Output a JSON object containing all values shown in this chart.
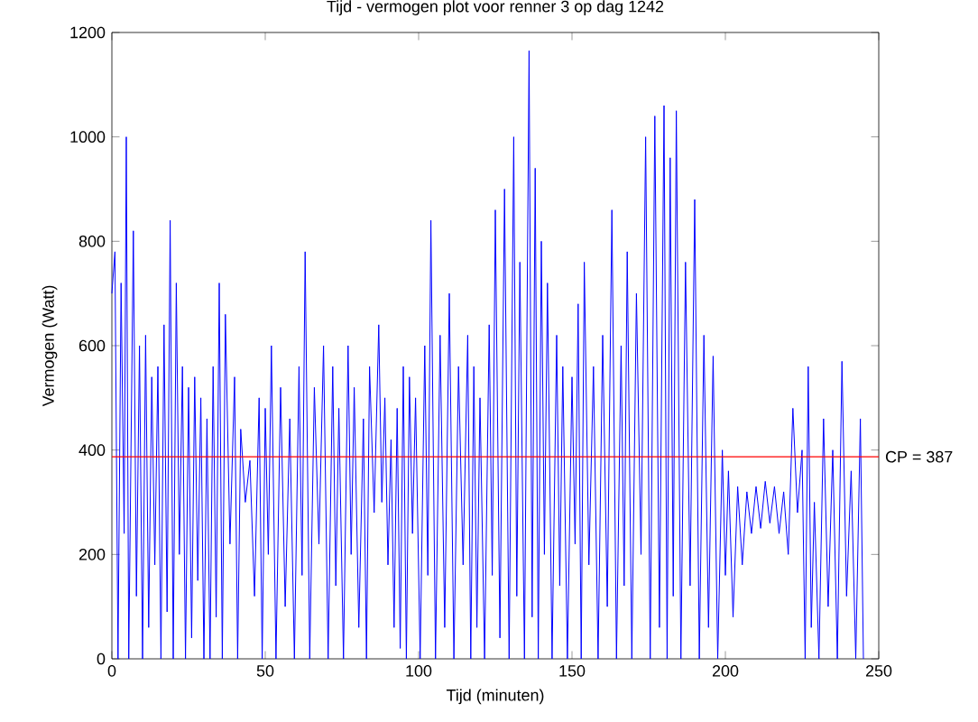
{
  "chart_data": {
    "type": "line",
    "title": "Tijd - vermogen plot voor renner 3 op dag 1242",
    "xlabel": "Tijd (minuten)",
    "ylabel": "Vermogen (Watt)",
    "xlim": [
      0,
      250
    ],
    "xticks": [
      0,
      50,
      100,
      150,
      200,
      250
    ],
    "ylim": [
      0,
      1200
    ],
    "yticks": [
      0,
      200,
      400,
      600,
      800,
      1000,
      1200
    ],
    "series": [
      {
        "color": "#0000ff",
        "x": [
          0,
          1,
          2,
          3,
          4,
          4.7,
          5.5,
          7,
          8,
          9,
          10,
          11,
          12,
          13,
          14,
          15,
          16,
          17,
          18,
          19,
          20,
          21,
          22,
          23,
          24,
          25,
          26,
          27,
          28,
          29,
          30,
          31,
          32,
          33,
          34,
          35,
          36,
          37,
          38.5,
          40,
          41,
          42,
          43.5,
          45,
          46.5,
          48,
          49,
          50,
          51,
          52,
          53.5,
          55,
          56.5,
          58,
          59.5,
          61,
          62,
          63,
          64.5,
          66,
          67.5,
          69,
          70.5,
          72,
          73,
          74,
          75.5,
          77,
          78,
          79,
          80.5,
          82,
          83,
          84,
          85.5,
          87,
          88,
          89,
          90,
          91,
          92,
          93,
          94,
          95,
          96,
          97,
          98,
          99,
          100.5,
          102,
          103,
          104,
          105.5,
          107,
          108.5,
          110,
          111.5,
          113,
          114.5,
          116,
          117,
          118,
          119,
          120,
          121.5,
          123,
          124,
          125,
          126.5,
          128,
          129.5,
          131,
          132,
          133,
          134.5,
          136,
          137,
          138,
          139,
          140,
          141,
          142,
          143.5,
          145,
          146,
          147,
          148.5,
          150,
          151,
          152,
          153,
          154,
          155.5,
          157,
          158.5,
          160,
          161.5,
          163,
          164.5,
          166,
          167,
          168,
          169.5,
          171,
          172.5,
          174,
          175.5,
          177,
          178.5,
          180,
          181,
          182,
          183,
          184,
          185.5,
          187,
          188.5,
          190,
          191.5,
          193,
          194.5,
          196,
          197.5,
          199,
          200,
          201,
          202.5,
          204,
          205.5,
          207,
          208.5,
          210,
          211.5,
          213,
          214.5,
          216,
          217.5,
          219,
          220.5,
          222,
          223.5,
          225,
          226,
          227,
          228,
          229,
          230.5,
          232,
          233.5,
          235,
          236.5,
          238,
          239.5,
          241,
          242.5,
          244,
          245
        ],
        "values": [
          700,
          780,
          0,
          720,
          240,
          1000,
          0,
          820,
          120,
          600,
          0,
          620,
          60,
          540,
          180,
          560,
          0,
          640,
          90,
          840,
          0,
          720,
          200,
          560,
          0,
          520,
          40,
          540,
          150,
          500,
          0,
          460,
          0,
          560,
          80,
          720,
          0,
          660,
          220,
          540,
          0,
          440,
          300,
          380,
          120,
          500,
          0,
          480,
          200,
          600,
          0,
          520,
          100,
          460,
          0,
          560,
          160,
          780,
          0,
          520,
          220,
          600,
          0,
          560,
          140,
          480,
          0,
          600,
          200,
          520,
          60,
          460,
          0,
          560,
          280,
          640,
          300,
          500,
          180,
          420,
          60,
          480,
          20,
          560,
          0,
          540,
          240,
          500,
          0,
          600,
          160,
          840,
          0,
          620,
          60,
          700,
          0,
          560,
          180,
          620,
          0,
          560,
          60,
          500,
          0,
          640,
          160,
          860,
          40,
          900,
          0,
          1000,
          120,
          760,
          0,
          1165,
          80,
          940,
          0,
          800,
          200,
          720,
          0,
          620,
          140,
          560,
          0,
          540,
          220,
          680,
          0,
          760,
          180,
          560,
          0,
          620,
          100,
          860,
          0,
          600,
          140,
          780,
          0,
          700,
          200,
          1000,
          0,
          1040,
          60,
          1060,
          0,
          960,
          120,
          1050,
          0,
          760,
          140,
          880,
          0,
          620,
          60,
          580,
          0,
          400,
          160,
          360,
          80,
          330,
          180,
          320,
          240,
          330,
          250,
          340,
          260,
          330,
          240,
          320,
          200,
          480,
          280,
          400,
          0,
          560,
          60,
          300,
          0,
          460,
          100,
          400,
          0,
          570,
          120,
          360,
          0,
          460,
          0
        ]
      }
    ],
    "ref_lines": [
      {
        "axis": "y",
        "value": 387,
        "label": "CP = 387",
        "color": "#ff0000"
      }
    ]
  }
}
